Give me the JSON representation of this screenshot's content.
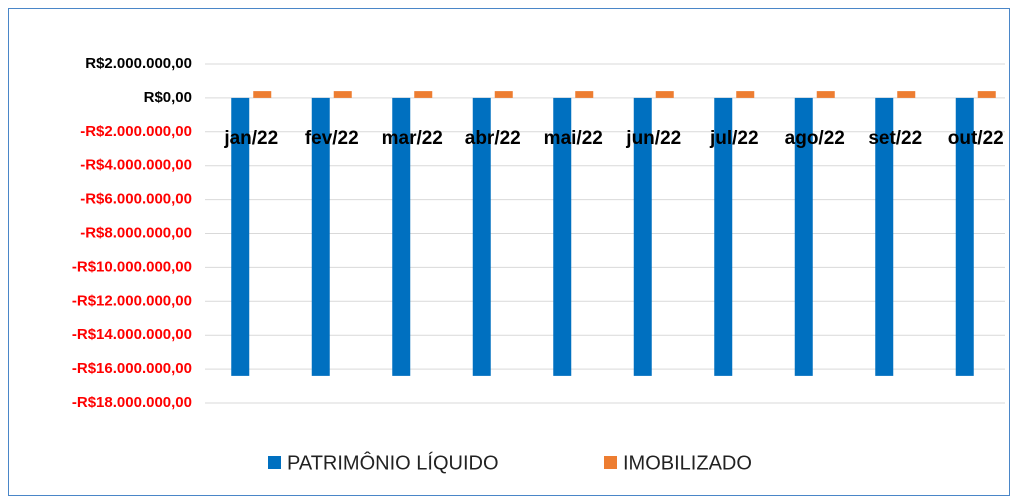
{
  "chart_data": {
    "type": "bar",
    "categories": [
      "jan/22",
      "fev/22",
      "mar/22",
      "abr/22",
      "mai/22",
      "jun/22",
      "jul/22",
      "ago/22",
      "set/22",
      "out/22"
    ],
    "series": [
      {
        "name": "PATRIMÔNIO LÍQUIDO",
        "color": "#0070c0",
        "values": [
          -16400000,
          -16400000,
          -16400000,
          -16400000,
          -16400000,
          -16400000,
          -16400000,
          -16400000,
          -16400000,
          -16400000
        ]
      },
      {
        "name": "IMOBILIZADO",
        "color": "#ed7d31",
        "values": [
          400000,
          400000,
          400000,
          400000,
          400000,
          400000,
          400000,
          400000,
          400000,
          400000
        ]
      }
    ],
    "ylim": [
      -18000000,
      2000000
    ],
    "yticks": [
      {
        "value": 2000000,
        "label": "R$2.000.000,00"
      },
      {
        "value": 0,
        "label": "R$0,00"
      },
      {
        "value": -2000000,
        "label": "-R$2.000.000,00"
      },
      {
        "value": -4000000,
        "label": "-R$4.000.000,00"
      },
      {
        "value": -6000000,
        "label": "-R$6.000.000,00"
      },
      {
        "value": -8000000,
        "label": "-R$8.000.000,00"
      },
      {
        "value": -10000000,
        "label": "-R$10.000.000,00"
      },
      {
        "value": -12000000,
        "label": "-R$12.000.000,00"
      },
      {
        "value": -14000000,
        "label": "-R$14.000.000,00"
      },
      {
        "value": -16000000,
        "label": "-R$16.000.000,00"
      },
      {
        "value": -18000000,
        "label": "-R$18.000.000,00"
      }
    ],
    "negative_tick_color": "#ff0000",
    "grid": true,
    "legend": "bottom"
  }
}
